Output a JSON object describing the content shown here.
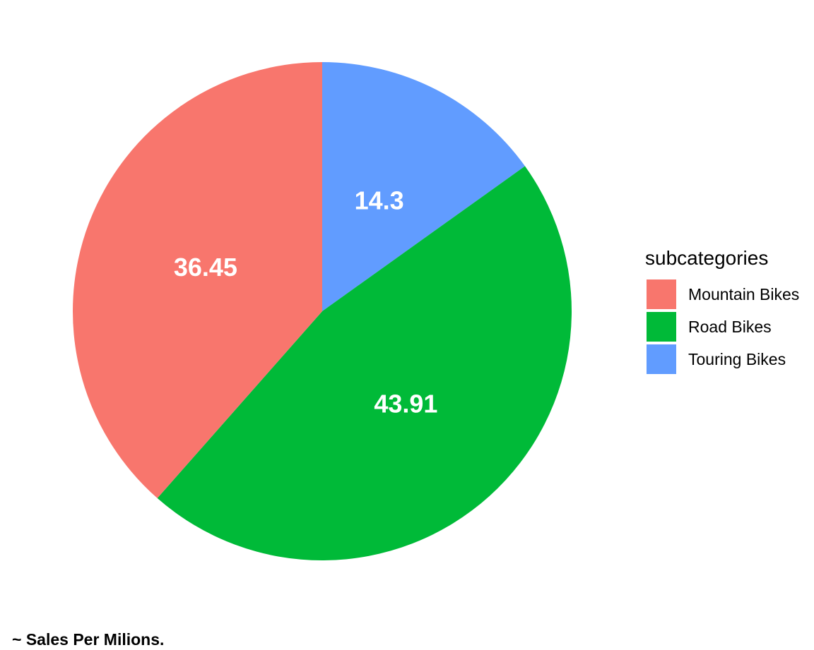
{
  "chart_data": {
    "type": "pie",
    "title": "",
    "legend_title": "subcategories",
    "legend_position": "right",
    "slices": [
      {
        "label": "Mountain Bikes",
        "value": 36.45,
        "display": "36.45",
        "color": "#F8766D"
      },
      {
        "label": "Road Bikes",
        "value": 43.91,
        "display": "43.91",
        "color": "#00BA38"
      },
      {
        "label": "Touring Bikes",
        "value": 14.3,
        "display": "14.3",
        "color": "#619CFF"
      }
    ],
    "caption": "~ Sales Per Milions."
  }
}
